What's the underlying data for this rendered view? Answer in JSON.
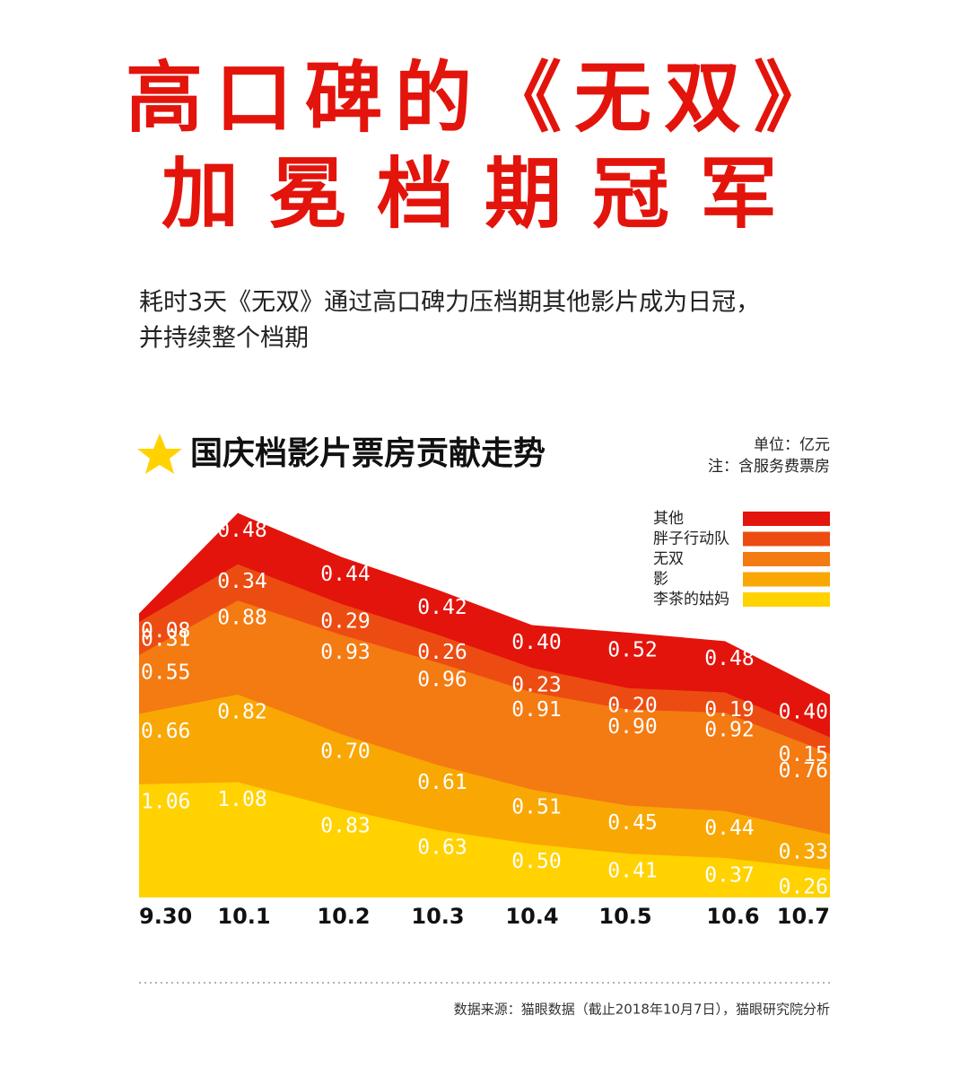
{
  "headline": [
    "高口碑的《无双》",
    "加冕档期冠军"
  ],
  "subtitle": [
    "耗时3天《无双》通过高口碑力压档期其他影片成为日冠，",
    "并持续整个档期"
  ],
  "chart_data": {
    "type": "stacked_area",
    "title": "国庆档影片票房贡献走势",
    "notes": [
      "单位：亿元",
      "注：含服务费票房"
    ],
    "source": "数据来源：猫眼数据（截止2018年10月7日），猫眼研究院分析",
    "categories": [
      "9.30",
      "10.1",
      "10.2",
      "10.3",
      "10.4",
      "10.5",
      "10.6",
      "10.7"
    ],
    "series": [
      {
        "name": "李茶的姑妈",
        "color": "#ffd200",
        "values": [
          1.06,
          1.08,
          0.83,
          0.63,
          0.5,
          0.41,
          0.37,
          0.26
        ],
        "value_labels": [
          "1.06",
          "1.08",
          "0.83",
          "0.63",
          "0.50",
          "0.41",
          "0.37",
          "0.26"
        ]
      },
      {
        "name": "影",
        "color": "#f9a703",
        "values": [
          0.66,
          0.82,
          0.7,
          0.61,
          0.51,
          0.45,
          0.44,
          0.33
        ],
        "value_labels": [
          "0.66",
          "0.82",
          "0.70",
          "0.61",
          "0.51",
          "0.45",
          "0.44",
          "0.33"
        ]
      },
      {
        "name": "无双",
        "color": "#f47a12",
        "values": [
          0.55,
          0.88,
          0.93,
          0.96,
          0.91,
          0.9,
          0.92,
          0.76
        ],
        "value_labels": [
          "0.55",
          "0.88",
          "0.93",
          "0.96",
          "0.91",
          "0.90",
          "0.92",
          "0.76"
        ]
      },
      {
        "name": "胖子行动队",
        "color": "#ec4c12",
        "values": [
          0.31,
          0.34,
          0.29,
          0.26,
          0.23,
          0.2,
          0.19,
          0.15
        ],
        "value_labels": [
          "0.31",
          "0.34",
          "0.29",
          "0.26",
          "0.23",
          "0.20",
          "0.19",
          "0.15"
        ]
      },
      {
        "name": "其他",
        "color": "#e3140c",
        "values": [
          0.08,
          0.48,
          0.44,
          0.42,
          0.4,
          0.52,
          0.48,
          0.4
        ],
        "value_labels": [
          "0.08",
          "0.48",
          "0.44",
          "0.42",
          "0.40",
          "0.52",
          "0.48",
          "0.40"
        ]
      }
    ]
  }
}
